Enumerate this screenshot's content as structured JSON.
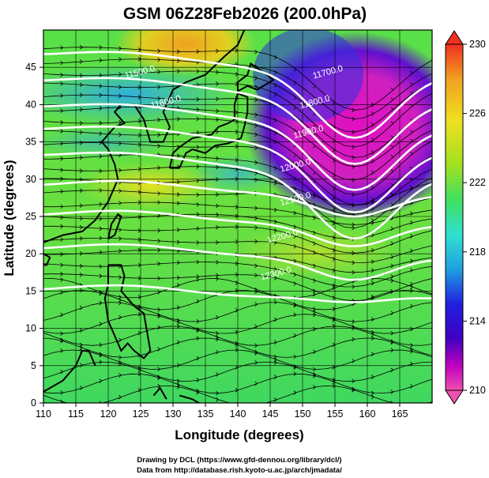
{
  "figure": {
    "title": "GSM 06Z28Feb2026 (200.0hPa)",
    "xlabel": "Longitude (degrees)",
    "ylabel": "Latitude  (degrees)",
    "credit_line1": "Drawing by DCL (https://www.gfd-dennou.org/library/dcl/)",
    "credit_line2": "Data from http://database.rish.kyoto-u.ac.jp/arch/jmadata/"
  },
  "chart_data": {
    "type": "heatmap",
    "title": "GSM 06Z28Feb2026 (200.0hPa)",
    "xlabel": "Longitude (degrees)",
    "ylabel": "Latitude  (degrees)",
    "xlim": [
      110,
      170
    ],
    "ylim": [
      0,
      50
    ],
    "xticks": [
      "110",
      "115",
      "120",
      "125",
      "130",
      "135",
      "140",
      "145",
      "150",
      "155",
      "160",
      "165"
    ],
    "yticks": [
      "0",
      "5",
      "10",
      "15",
      "20",
      "25",
      "30",
      "35",
      "40",
      "45"
    ],
    "xtick_values": [
      110,
      115,
      120,
      125,
      130,
      135,
      140,
      145,
      150,
      155,
      160,
      165
    ],
    "ytick_values": [
      0,
      5,
      10,
      15,
      20,
      25,
      30,
      35,
      40,
      45
    ],
    "colorbar": {
      "range": [
        210,
        230
      ],
      "ticks": [
        "230",
        "226",
        "222",
        "218",
        "214",
        "210"
      ],
      "tick_values": [
        230,
        226,
        222,
        218,
        214,
        210
      ],
      "colors": [
        "#f05090",
        "#c000c0",
        "#4000c0",
        "#2020e0",
        "#20a0e0",
        "#30e0d0",
        "#40e060",
        "#80e020",
        "#c0e020",
        "#f0e020",
        "#f0a020",
        "#f03020"
      ]
    },
    "contour_labels": [
      {
        "text": "11700.0",
        "lon": 154,
        "lat": 44
      },
      {
        "text": "11800.0",
        "lon": 152,
        "lat": 40
      },
      {
        "text": "11900.0",
        "lon": 151,
        "lat": 36
      },
      {
        "text": "12000.0",
        "lon": 149,
        "lat": 31.5
      },
      {
        "text": "12100.0",
        "lon": 149,
        "lat": 27
      },
      {
        "text": "12200.0",
        "lon": 147,
        "lat": 22
      },
      {
        "text": "12300.0",
        "lon": 146,
        "lat": 17
      },
      {
        "text": "11500.0",
        "lon": 125,
        "lat": 44
      },
      {
        "text": "11600.0",
        "lon": 129,
        "lat": 40
      }
    ],
    "variables": [
      "temperature (K, shaded)",
      "geopotential height (m, contours)",
      "wind (streamlines)"
    ]
  }
}
